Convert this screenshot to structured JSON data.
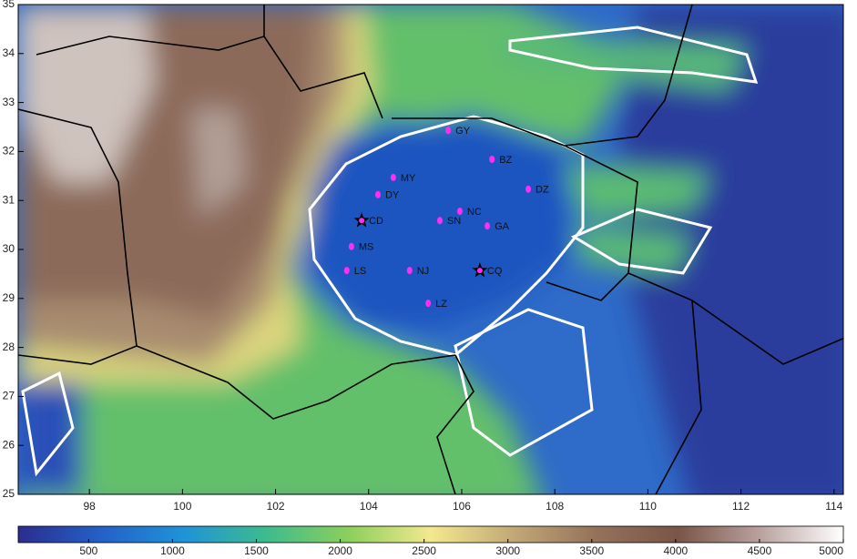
{
  "map": {
    "xlim": [
      96.47,
      114.2
    ],
    "ylim": [
      25,
      35
    ],
    "xticks": [
      98,
      100,
      102,
      104,
      106,
      108,
      110,
      112,
      114
    ],
    "yticks": [
      25,
      26,
      27,
      28,
      29,
      30,
      31,
      32,
      33,
      34,
      35
    ],
    "cities": [
      {
        "label": "GY",
        "lon": 105.71,
        "lat": 32.43,
        "marker": "dot"
      },
      {
        "label": "BZ",
        "lon": 106.65,
        "lat": 31.84,
        "marker": "dot"
      },
      {
        "label": "MY",
        "lon": 104.53,
        "lat": 31.47,
        "marker": "dot"
      },
      {
        "label": "DY",
        "lon": 104.2,
        "lat": 31.12,
        "marker": "dot"
      },
      {
        "label": "DZ",
        "lon": 107.43,
        "lat": 31.23,
        "marker": "dot"
      },
      {
        "label": "NC",
        "lon": 105.96,
        "lat": 30.78,
        "marker": "dot"
      },
      {
        "label": "SN",
        "lon": 105.53,
        "lat": 30.59,
        "marker": "dot"
      },
      {
        "label": "GA",
        "lon": 106.55,
        "lat": 30.48,
        "marker": "dot"
      },
      {
        "label": "CD",
        "lon": 103.85,
        "lat": 30.59,
        "marker": "star"
      },
      {
        "label": "MS",
        "lon": 103.63,
        "lat": 30.06,
        "marker": "dot"
      },
      {
        "label": "LS",
        "lon": 103.53,
        "lat": 29.57,
        "marker": "dot"
      },
      {
        "label": "NJ",
        "lon": 104.88,
        "lat": 29.57,
        "marker": "dot"
      },
      {
        "label": "CQ",
        "lon": 106.39,
        "lat": 29.57,
        "marker": "star"
      },
      {
        "label": "LZ",
        "lon": 105.28,
        "lat": 28.9,
        "marker": "dot"
      }
    ],
    "colorbar": {
      "range": [
        80,
        5000
      ],
      "ticks": [
        500,
        1000,
        1500,
        2000,
        2500,
        3000,
        3500,
        4000,
        4500,
        5000
      ]
    }
  }
}
